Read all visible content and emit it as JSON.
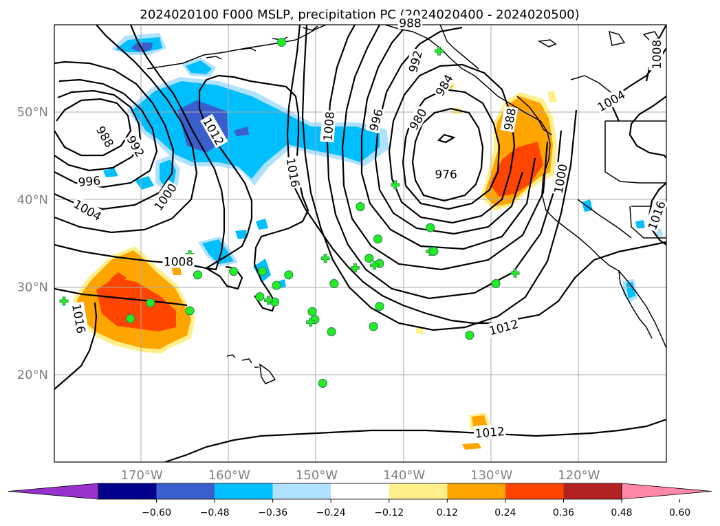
{
  "title": "2024020100 F000 MSLP, precipitation PC (2024020400 - 2024020500)",
  "map": {
    "lon_range": [
      -180,
      -110
    ],
    "lat_range": [
      10,
      60
    ],
    "lon_ticks": [
      {
        "lon": -170,
        "label": "170°W"
      },
      {
        "lon": -160,
        "label": "160°W"
      },
      {
        "lon": -150,
        "label": "150°W"
      },
      {
        "lon": -140,
        "label": "140°W"
      },
      {
        "lon": -130,
        "label": "130°W"
      },
      {
        "lon": -120,
        "label": "120°W"
      }
    ],
    "lat_ticks": [
      {
        "lat": 50,
        "label": "50°N"
      },
      {
        "lat": 40,
        "label": "40°N"
      },
      {
        "lat": 30,
        "label": "30°N"
      },
      {
        "lat": 20,
        "label": "20°N"
      }
    ],
    "grid": true,
    "field": "precipitation PC",
    "contour_field": "MSLP",
    "low_centers": [
      {
        "lon": -137.5,
        "lat": 47,
        "value": 976
      },
      {
        "lon": -175,
        "lat": 47.5,
        "value": 988
      }
    ],
    "isobar_labels": [
      "976",
      "980",
      "984",
      "988",
      "992",
      "996",
      "1000",
      "1004",
      "1008",
      "1012",
      "1016"
    ],
    "isobar_label_instances": [
      {
        "text": "988",
        "lon": -174.2,
        "lat": 47.2,
        "rotate": 60
      },
      {
        "text": "992",
        "lon": -170.7,
        "lat": 46.1,
        "rotate": 60
      },
      {
        "text": "996",
        "lon": -176,
        "lat": 42.1,
        "rotate": -5
      },
      {
        "text": "1000",
        "lon": -167.3,
        "lat": 40.3,
        "rotate": -55
      },
      {
        "text": "1004",
        "lon": -176.2,
        "lat": 38.8,
        "rotate": 30
      },
      {
        "text": "1008",
        "lon": -165.8,
        "lat": 32.9,
        "rotate": 0
      },
      {
        "text": "1012",
        "lon": -161.8,
        "lat": 47.8,
        "rotate": 60
      },
      {
        "text": "1016",
        "lon": -177.2,
        "lat": 26.4,
        "rotate": 80
      },
      {
        "text": "1016",
        "lon": -152.7,
        "lat": 43.1,
        "rotate": 80
      },
      {
        "text": "1008",
        "lon": -148.6,
        "lat": 48.4,
        "rotate": -85
      },
      {
        "text": "996",
        "lon": -143.2,
        "lat": 49.1,
        "rotate": -75
      },
      {
        "text": "992",
        "lon": -138.7,
        "lat": 55.8,
        "rotate": -75
      },
      {
        "text": "980",
        "lon": -138.4,
        "lat": 49.2,
        "rotate": -60
      },
      {
        "text": "984",
        "lon": -135.4,
        "lat": 53.1,
        "rotate": -60
      },
      {
        "text": "988",
        "lon": -127.9,
        "lat": 49.2,
        "rotate": -80
      },
      {
        "text": "976",
        "lon": -135.2,
        "lat": 42.9,
        "rotate": 0
      },
      {
        "text": "1000",
        "lon": -122.1,
        "lat": 42.4,
        "rotate": -80
      },
      {
        "text": "1004",
        "lon": -116.3,
        "lat": 51.3,
        "rotate": -30
      },
      {
        "text": "1008",
        "lon": -111.1,
        "lat": 56.6,
        "rotate": -90
      },
      {
        "text": "1012",
        "lon": -128.6,
        "lat": 25.4,
        "rotate": -15
      },
      {
        "text": "1012",
        "lon": -130.2,
        "lat": 13.4,
        "rotate": -5
      },
      {
        "text": "1016",
        "lon": -111.1,
        "lat": 38.2,
        "rotate": -70
      },
      {
        "text": "988",
        "lon": -139.3,
        "lat": 60.2,
        "rotate": 0
      }
    ],
    "precip_regions": [
      {
        "region": "North Pacific band 45-52N",
        "sign": "negative"
      },
      {
        "region": "Subtropical 165-180W 23-35N",
        "sign": "positive"
      },
      {
        "region": "US/Canada west coast 40-52N",
        "sign": "positive"
      }
    ],
    "station_markers": [
      {
        "lon": -154,
        "lat": 58,
        "symbol": "circle"
      },
      {
        "lon": -136,
        "lat": 57,
        "symbol": "plus"
      },
      {
        "lon": -141,
        "lat": 41.7,
        "symbol": "plus"
      },
      {
        "lon": -145,
        "lat": 39.2,
        "symbol": "circle"
      },
      {
        "lon": -137,
        "lat": 36.8,
        "symbol": "circle"
      },
      {
        "lon": -143,
        "lat": 35.5,
        "symbol": "circle"
      },
      {
        "lon": -137,
        "lat": 34.1,
        "symbol": "plus"
      },
      {
        "lon": -136.6,
        "lat": 34.1,
        "symbol": "circle"
      },
      {
        "lon": -144,
        "lat": 33.3,
        "symbol": "circle"
      },
      {
        "lon": -149,
        "lat": 33.3,
        "symbol": "plus"
      },
      {
        "lon": -142.8,
        "lat": 32.7,
        "symbol": "circle"
      },
      {
        "lon": -143.4,
        "lat": 32.5,
        "symbol": "plus"
      },
      {
        "lon": -145.6,
        "lat": 32.2,
        "symbol": "plus"
      },
      {
        "lon": -156.2,
        "lat": 31.8,
        "symbol": "circle"
      },
      {
        "lon": -159.5,
        "lat": 31.8,
        "symbol": "circle"
      },
      {
        "lon": -153.2,
        "lat": 31.4,
        "symbol": "circle"
      },
      {
        "lon": -163.6,
        "lat": 31.4,
        "symbol": "circle"
      },
      {
        "lon": -164.5,
        "lat": 33.7,
        "symbol": "plus"
      },
      {
        "lon": -127.3,
        "lat": 31.6,
        "symbol": "plus"
      },
      {
        "lon": -148,
        "lat": 30.4,
        "symbol": "circle"
      },
      {
        "lon": -154.6,
        "lat": 30.2,
        "symbol": "circle"
      },
      {
        "lon": -129.5,
        "lat": 30.4,
        "symbol": "circle"
      },
      {
        "lon": -156.5,
        "lat": 28.9,
        "symbol": "circle"
      },
      {
        "lon": -154.8,
        "lat": 28.3,
        "symbol": "circle"
      },
      {
        "lon": -155.5,
        "lat": 28.5,
        "symbol": "plus"
      },
      {
        "lon": -169,
        "lat": 28.2,
        "symbol": "circle"
      },
      {
        "lon": -178.9,
        "lat": 28.4,
        "symbol": "plus"
      },
      {
        "lon": -142.8,
        "lat": 27.8,
        "symbol": "circle"
      },
      {
        "lon": -164.5,
        "lat": 27.3,
        "symbol": "circle"
      },
      {
        "lon": -150.5,
        "lat": 27.2,
        "symbol": "circle"
      },
      {
        "lon": -171.3,
        "lat": 26.4,
        "symbol": "circle"
      },
      {
        "lon": -150.2,
        "lat": 26.3,
        "symbol": "circle"
      },
      {
        "lon": -150.7,
        "lat": 26,
        "symbol": "plus"
      },
      {
        "lon": -143.5,
        "lat": 25.5,
        "symbol": "circle"
      },
      {
        "lon": -148.3,
        "lat": 24.9,
        "symbol": "circle"
      },
      {
        "lon": -132.5,
        "lat": 24.5,
        "symbol": "circle"
      },
      {
        "lon": -149.3,
        "lat": 19,
        "symbol": "circle"
      }
    ]
  },
  "colorbar": {
    "ticks": [
      "−0.60",
      "−0.48",
      "−0.36",
      "−0.24",
      "−0.12",
      "0.12",
      "0.24",
      "0.36",
      "0.48",
      "0.60"
    ],
    "colors": [
      "#9932cc",
      "#00008b",
      "#3a5fcd",
      "#00bfff",
      "#b0e2ff",
      "#ffffff",
      "#fff08c",
      "#ffa500",
      "#ff4500",
      "#b22222",
      "#ff88a8"
    ],
    "extend": "both"
  },
  "colors": {
    "marker": "#22ee22",
    "marker_edge": "#2e8b57",
    "contour": "#000000",
    "grid": "#aaaaaa"
  }
}
